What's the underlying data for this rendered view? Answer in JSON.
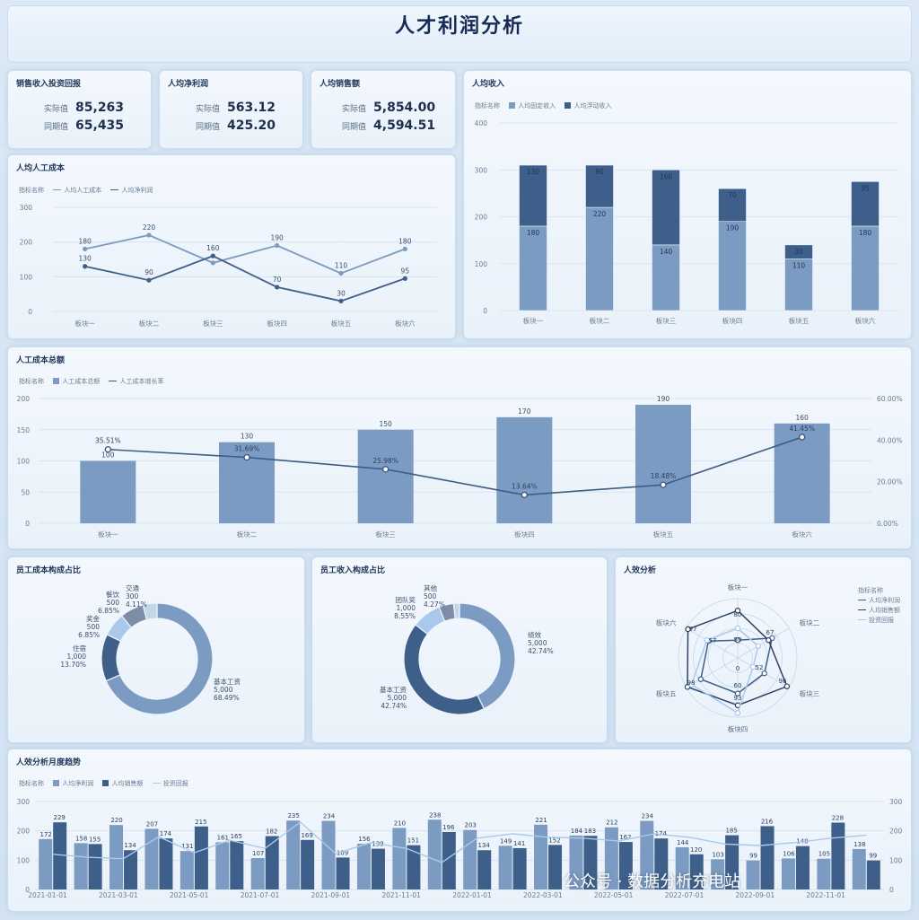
{
  "title": "人才利润分析",
  "kpis": [
    {
      "title": "销售收入投资回报",
      "actual_label": "实际值",
      "actual": "85,263",
      "compare_label": "同期值",
      "compare": "65,435"
    },
    {
      "title": "人均净利润",
      "actual_label": "实际值",
      "actual": "563.12",
      "compare_label": "同期值",
      "compare": "425.20"
    },
    {
      "title": "人均销售额",
      "actual_label": "实际值",
      "actual": "5,854.00",
      "compare_label": "同期值",
      "compare": "4,594.51"
    }
  ],
  "legend_prefix": "指标名称",
  "colors": {
    "light": "#7c9bc2",
    "dark": "#3d5f89",
    "pale": "#a9c9ec",
    "grey": "#7b8ea6",
    "line": "#3e5d86"
  },
  "chart_data": [
    {
      "id": "labor_cost",
      "title": "人均人工成本",
      "type": "line",
      "categories": [
        "板块一",
        "板块二",
        "板块三",
        "板块四",
        "板块五",
        "板块六"
      ],
      "series": [
        {
          "name": "人均人工成本",
          "values": [
            180,
            220,
            140,
            190,
            110,
            180
          ],
          "labels": [
            "180",
            "220",
            "",
            "190",
            "110",
            "180"
          ]
        },
        {
          "name": "人均净利润",
          "values": [
            130,
            90,
            160,
            70,
            30,
            95
          ],
          "labels": [
            "130",
            "90",
            "160",
            "70",
            "30",
            "95"
          ]
        }
      ],
      "yticks": [
        "0",
        "100",
        "200",
        "300"
      ],
      "ylim": [
        0,
        300
      ]
    },
    {
      "id": "income",
      "title": "人均收入",
      "type": "bar",
      "stacked": true,
      "categories": [
        "板块一",
        "板块二",
        "板块三",
        "板块四",
        "板块五",
        "板块六"
      ],
      "series": [
        {
          "name": "人均固定收入",
          "values": [
            180,
            220,
            140,
            190,
            110,
            180
          ]
        },
        {
          "name": "人均浮动收入",
          "values": [
            130,
            90,
            160,
            70,
            30,
            95
          ]
        }
      ],
      "yticks": [
        "0",
        "100",
        "200",
        "300",
        "400"
      ],
      "ylim": [
        0,
        400
      ]
    },
    {
      "id": "total_cost",
      "title": "人工成本总额",
      "type": "bar",
      "categories": [
        "板块一",
        "板块二",
        "板块三",
        "板块四",
        "板块五",
        "板块六"
      ],
      "series": [
        {
          "name": "人工成本总额",
          "values": [
            100,
            130,
            150,
            170,
            190,
            160
          ],
          "labels": [
            "100",
            "130",
            "150",
            "170",
            "190",
            "160"
          ]
        },
        {
          "name": "人工成本增长率",
          "axis": "right",
          "values": [
            35.51,
            31.69,
            25.98,
            13.64,
            18.48,
            41.45
          ],
          "labels": [
            "35.51%",
            "31.69%",
            "25.98%",
            "13.64%",
            "18.48%",
            "41.45%"
          ]
        }
      ],
      "yticks": [
        "0",
        "50",
        "100",
        "150",
        "200"
      ],
      "ylim": [
        0,
        200
      ],
      "y2ticks": [
        "0.00%",
        "20.00%",
        "40.00%",
        "60.00%"
      ],
      "y2lim": [
        0,
        60
      ]
    },
    {
      "id": "cost_pie",
      "title": "员工成本构成占比",
      "type": "pie",
      "slices": [
        {
          "name": "基本工资",
          "value": "5,000",
          "pct": "68.49%",
          "v": 68.49
        },
        {
          "name": "住宿",
          "value": "1,000",
          "pct": "13.70%",
          "v": 13.7
        },
        {
          "name": "奖金",
          "value": "500",
          "pct": "6.85%",
          "v": 6.85
        },
        {
          "name": "餐饮",
          "value": "500",
          "pct": "6.85%",
          "v": 6.85
        },
        {
          "name": "交通",
          "value": "300",
          "pct": "4.11%",
          "v": 4.11
        }
      ]
    },
    {
      "id": "income_pie",
      "title": "员工收入构成占比",
      "type": "pie",
      "slices": [
        {
          "name": "绩效",
          "value": "5,000",
          "pct": "42.74%",
          "v": 42.74
        },
        {
          "name": "基本工资",
          "value": "5,000",
          "pct": "42.74%",
          "v": 42.74
        },
        {
          "name": "团队奖",
          "value": "1,000",
          "pct": "8.55%",
          "v": 8.55
        },
        {
          "name": "其他",
          "value": "500",
          "pct": "4.27%",
          "v": 4.27
        },
        {
          "name": "",
          "value": "",
          "pct": "",
          "v": 1.7
        }
      ]
    },
    {
      "id": "efficiency_radar",
      "title": "人效分析",
      "type": "radar",
      "axes": [
        "板块一",
        "板块二",
        "板块三",
        "板块四",
        "板块五",
        "板块六"
      ],
      "series": [
        {
          "name": "人均净利润",
          "values": [
            30,
            67,
            52,
            60,
            72,
            57
          ]
        },
        {
          "name": "人均销售额",
          "values": [
            80,
            60,
            96,
            80,
            98,
            97
          ]
        },
        {
          "name": "投资回报",
          "values": [
            50,
            40,
            30,
            93,
            90,
            60
          ]
        }
      ],
      "value_labels": [
        "80",
        "67",
        "96",
        "93",
        "98",
        "97",
        "50",
        "52",
        "60",
        "57",
        "0"
      ]
    },
    {
      "id": "monthly",
      "title": "人效分析月度趋势",
      "type": "bar",
      "months": [
        "2021-01-01",
        "2021-02-01",
        "2021-03-01",
        "2021-04-01",
        "2021-05-01",
        "2021-06-01",
        "2021-07-01",
        "2021-08-01",
        "2021-09-01",
        "2021-10-01",
        "2021-11-01",
        "2021-12-01",
        "2022-01-01",
        "2022-02-01",
        "2022-03-01",
        "2022-04-01",
        "2022-05-01",
        "2022-06-01",
        "2022-07-01",
        "2022-08-01",
        "2022-09-01",
        "2022-10-01",
        "2022-11-01",
        "2022-12-01"
      ],
      "xticks": [
        "2021-01-01",
        "2021-03-01",
        "2021-05-01",
        "2021-07-01",
        "2021-09-01",
        "2021-11-01",
        "2022-01-01",
        "2022-03-01",
        "2022-05-01",
        "2022-07-01",
        "2022-09-01",
        "2022-11-01"
      ],
      "series": [
        {
          "name": "人均净利润",
          "values": [
            172,
            158,
            220,
            207,
            131,
            161,
            107,
            235,
            234,
            156,
            210,
            238,
            203,
            149,
            221,
            184,
            212,
            234,
            144,
            103,
            99,
            106,
            105,
            138
          ]
        },
        {
          "name": "人均销售额",
          "values": [
            229,
            155,
            134,
            174,
            215,
            165,
            182,
            169,
            109,
            139,
            151,
            196,
            134,
            141,
            152,
            183,
            162,
            174,
            120,
            185,
            216,
            148,
            228,
            99
          ]
        },
        {
          "name": "投资回报",
          "values": [
            120,
            110,
            105,
            180,
            125,
            168,
            140,
            230,
            122,
            160,
            140,
            92,
            175,
            190,
            178,
            175,
            165,
            190,
            178,
            155,
            150,
            160,
            175,
            185
          ]
        }
      ],
      "yticks": [
        "0",
        "100",
        "200",
        "300"
      ],
      "ylim": [
        0,
        300
      ],
      "y2ticks": [
        "0",
        "100",
        "200",
        "300"
      ]
    }
  ],
  "watermark": "公众号 · 数据分析充电站"
}
